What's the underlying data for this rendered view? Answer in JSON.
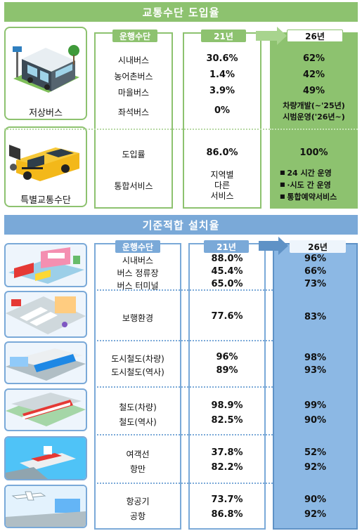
{
  "top": {
    "title": "교통수단 도입율",
    "col_mode": "운행수단",
    "col_21": "21년",
    "col_26": "26년",
    "low_floor_label": "저상버스",
    "special_label": "특별교통수단",
    "rows_bus": [
      {
        "name": "시내버스",
        "v21": "30.6%",
        "v26": "62%"
      },
      {
        "name": "농어촌버스",
        "v21": "1.4%",
        "v26": "42%"
      },
      {
        "name": "마을버스",
        "v21": "3.9%",
        "v26": "49%"
      },
      {
        "name": "좌석버스",
        "v21": "0%",
        "v26_line1": "차량개발(~'25년)",
        "v26_line2": "시범운영('26년~)"
      }
    ],
    "special_intro": {
      "name": "도입률",
      "v21": "86.0%",
      "v26": "100%"
    },
    "special_service": {
      "name": "통합서비스",
      "v21_lines": [
        "지역별",
        "다른",
        "서비스"
      ],
      "v26_bullets": [
        "24 시간 운영",
        "·시도 간 운영",
        "통합예약서비스"
      ]
    }
  },
  "bottom": {
    "title": "기준적합 설치율",
    "col_mode": "운행수단",
    "col_21": "21년",
    "col_26": "26년",
    "groups": [
      {
        "icon": "bus-station-illustration",
        "rows": [
          {
            "name": "시내버스",
            "v21": "88.0%",
            "v26": "96%"
          },
          {
            "name": "버스 정류장",
            "v21": "45.4%",
            "v26": "66%"
          },
          {
            "name": "버스 터미널",
            "v21": "65.0%",
            "v26": "73%"
          }
        ]
      },
      {
        "icon": "crosswalk-illustration",
        "rows": [
          {
            "name": "보행환경",
            "v21": "77.6%",
            "v26": "83%"
          }
        ]
      },
      {
        "icon": "subway-illustration",
        "rows": [
          {
            "name": "도시철도(차량)",
            "v21": "96%",
            "v26": "98%"
          },
          {
            "name": "도시철도(역사)",
            "v21": "89%",
            "v26": "93%"
          }
        ]
      },
      {
        "icon": "train-illustration",
        "rows": [
          {
            "name": "철도(차량)",
            "v21": "98.9%",
            "v26": "99%"
          },
          {
            "name": "철도(역사)",
            "v21": "82.5%",
            "v26": "90%"
          }
        ]
      },
      {
        "icon": "ship-illustration",
        "rows": [
          {
            "name": "여객선",
            "v21": "37.8%",
            "v26": "52%"
          },
          {
            "name": "항만",
            "v21": "82.2%",
            "v26": "92%"
          }
        ]
      },
      {
        "icon": "airport-illustration",
        "rows": [
          {
            "name": "항공기",
            "v21": "73.7%",
            "v26": "90%"
          },
          {
            "name": "공항",
            "v21": "86.8%",
            "v26": "92%"
          }
        ]
      }
    ]
  },
  "colors": {
    "green": "#8dc26f",
    "blue": "#7aa9d8",
    "blue_fill": "#8cb8e4"
  }
}
